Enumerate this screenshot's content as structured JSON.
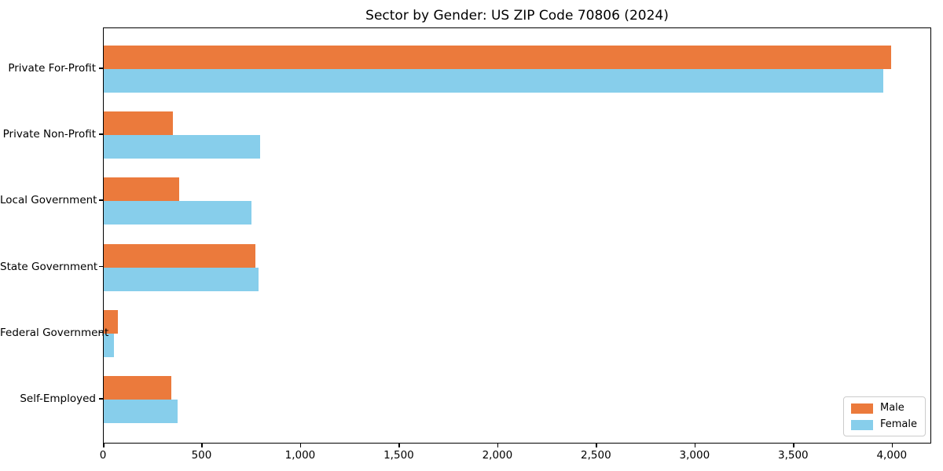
{
  "chart_data": {
    "type": "bar",
    "orientation": "horizontal",
    "title": "Sector by Gender: US ZIP Code 70806 (2024)",
    "categories": [
      "Private For-Profit",
      "Private Non-Profit",
      "Local Government",
      "State Government",
      "Federal Government",
      "Self-Employed"
    ],
    "series": [
      {
        "name": "Male",
        "color": "#eb7a3c",
        "values": [
          4000,
          350,
          385,
          770,
          70,
          345
        ]
      },
      {
        "name": "Female",
        "color": "#87ceeb",
        "values": [
          3960,
          795,
          750,
          785,
          50,
          375
        ]
      }
    ],
    "xlim": [
      0,
      4200
    ],
    "x_ticks": [
      0,
      500,
      1000,
      1500,
      2000,
      2500,
      3000,
      3500,
      4000
    ],
    "x_tick_labels": [
      "0",
      "500",
      "1,000",
      "1,500",
      "2,000",
      "2,500",
      "3,000",
      "3,500",
      "4,000"
    ],
    "xlabel": "",
    "ylabel": "",
    "grid": false,
    "legend_position": "lower right",
    "axis_color": "#000000",
    "background_color": "#ffffff"
  }
}
